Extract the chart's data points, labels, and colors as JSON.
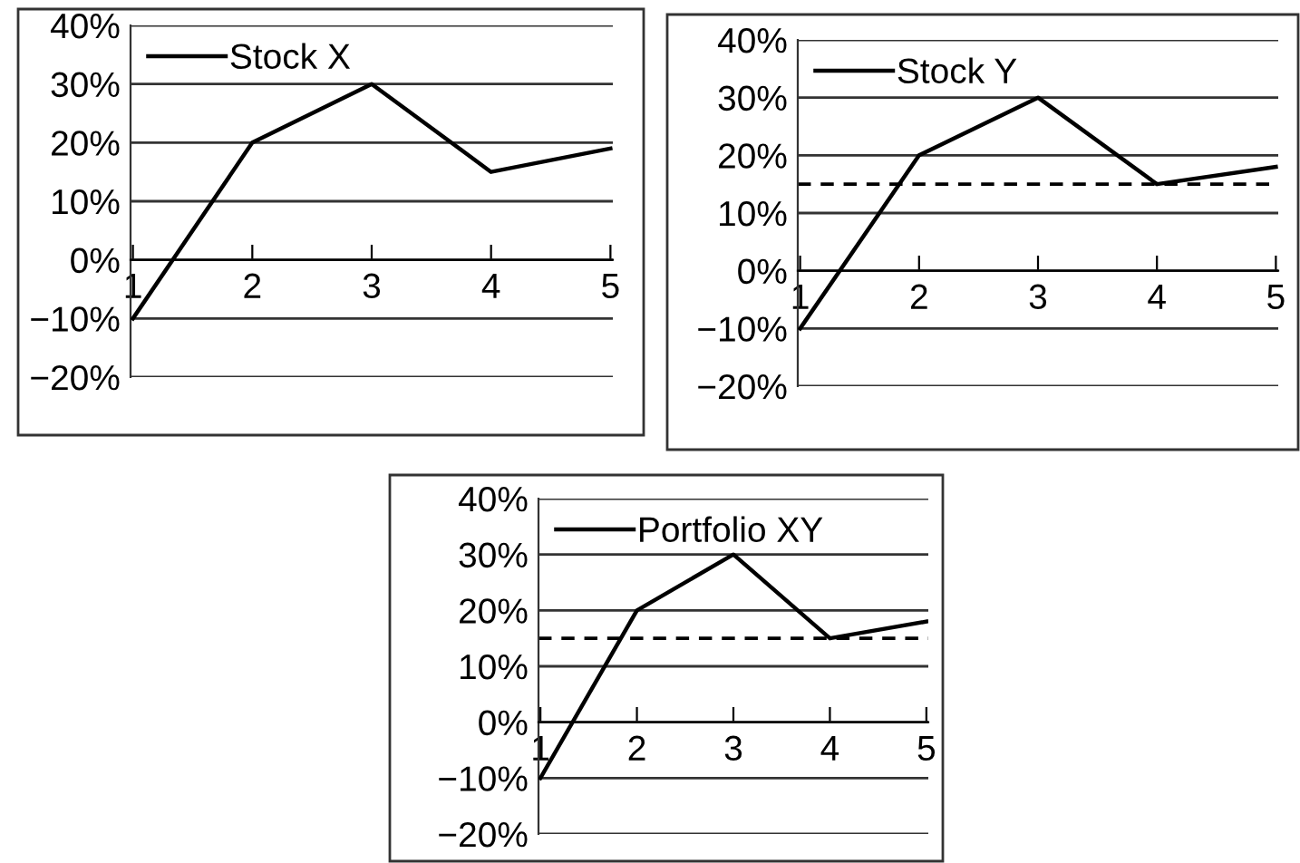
{
  "chart_data": [
    {
      "type": "line",
      "categories": [
        "1",
        "2",
        "3",
        "4",
        "5"
      ],
      "series": [
        {
          "name": "Stock X",
          "color": "#000000",
          "values": [
            -10,
            20,
            30,
            15,
            19
          ]
        }
      ],
      "ylim": [
        -20,
        40
      ],
      "yticks": [
        {
          "value": -20,
          "label": "−20%"
        },
        {
          "value": -10,
          "label": "−10%"
        },
        {
          "value": 0,
          "label": "0%"
        },
        {
          "value": 10,
          "label": "10%"
        },
        {
          "value": 20,
          "label": "20%"
        },
        {
          "value": 30,
          "label": "30%"
        },
        {
          "value": 40,
          "label": "40%"
        }
      ],
      "grid": "y",
      "legend": "top left",
      "marker": "none",
      "line_style": "solid"
    },
    {
      "type": "line",
      "categories": [
        "1",
        "2",
        "3",
        "4",
        "5"
      ],
      "series": [
        {
          "name": "Stock Y",
          "color": "#000000",
          "values": [
            -10,
            20,
            30,
            15,
            18
          ]
        }
      ],
      "ylim": [
        -20,
        40
      ],
      "yticks": [
        {
          "value": -20,
          "label": "−20%"
        },
        {
          "value": -10,
          "label": "−10%"
        },
        {
          "value": 0,
          "label": "0%"
        },
        {
          "value": 10,
          "label": "10%"
        },
        {
          "value": 20,
          "label": "20%"
        },
        {
          "value": 30,
          "label": "30%"
        },
        {
          "value": 40,
          "label": "40%"
        }
      ],
      "ref_lines": [
        {
          "axis": "y",
          "value": 15,
          "color": "#000000",
          "line_style": "dashed"
        }
      ],
      "grid": "y",
      "legend": "top left",
      "marker": "none",
      "line_style": "solid"
    },
    {
      "type": "line",
      "categories": [
        "1",
        "2",
        "3",
        "4",
        "5"
      ],
      "series": [
        {
          "name": "Portfolio XY",
          "color": "#000000",
          "values": [
            -10,
            20,
            30,
            15,
            18
          ]
        }
      ],
      "ylim": [
        -20,
        40
      ],
      "yticks": [
        {
          "value": -20,
          "label": "−20%"
        },
        {
          "value": -10,
          "label": "−10%"
        },
        {
          "value": 0,
          "label": "0%"
        },
        {
          "value": 10,
          "label": "10%"
        },
        {
          "value": 20,
          "label": "20%"
        },
        {
          "value": 30,
          "label": "30%"
        },
        {
          "value": 40,
          "label": "40%"
        }
      ],
      "ref_lines": [
        {
          "axis": "y",
          "value": 15,
          "color": "#000000",
          "line_style": "dashed"
        }
      ],
      "grid": "y",
      "legend": "top left",
      "marker": "none",
      "line_style": "solid"
    }
  ]
}
